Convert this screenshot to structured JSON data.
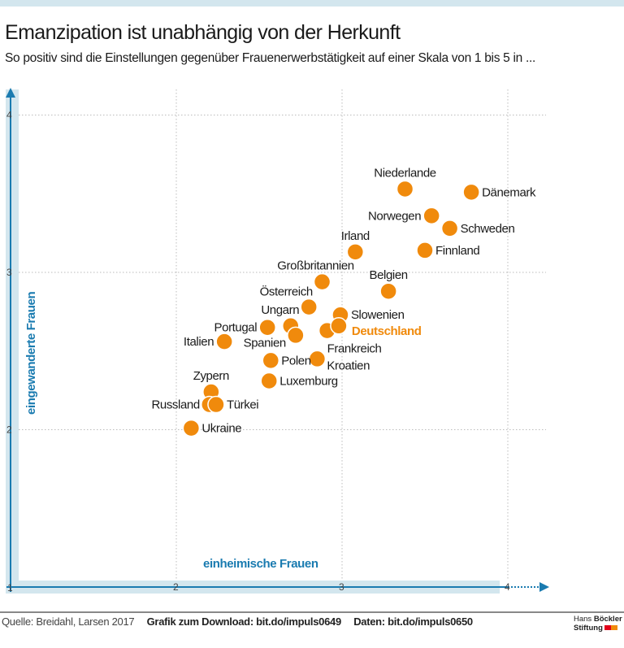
{
  "header": {
    "title": "Emanzipation ist unabhängig von der Herkunft",
    "subtitle": "So positiv sind die Einstellungen gegenüber Frauenerwerbstätigkeit auf einer Skala von 1 bis 5 in ..."
  },
  "chart_data": {
    "type": "scatter",
    "xlabel": "einheimische Frauen",
    "ylabel": "eingewanderte Frauen",
    "xlim": [
      1,
      4.3
    ],
    "ylim": [
      1,
      4.15
    ],
    "x_ticks": [
      "1",
      "2",
      "3",
      "4"
    ],
    "y_ticks": [
      "1",
      "2",
      "3",
      "4"
    ],
    "grid": true,
    "colors": {
      "point": "#f08a0c",
      "axis": "#1a7bb0",
      "axis_band": "#d3e6ee",
      "highlight_label": "#f08a0c"
    },
    "points": [
      {
        "label": "Niederlande",
        "x": 3.38,
        "y": 3.53,
        "label_side": "above"
      },
      {
        "label": "Dänemark",
        "x": 3.78,
        "y": 3.51,
        "label_side": "right"
      },
      {
        "label": "Norwegen",
        "x": 3.54,
        "y": 3.36,
        "label_side": "left"
      },
      {
        "label": "Schweden",
        "x": 3.65,
        "y": 3.28,
        "label_side": "right"
      },
      {
        "label": "Finnland",
        "x": 3.5,
        "y": 3.14,
        "label_side": "right"
      },
      {
        "label": "Irland",
        "x": 3.08,
        "y": 3.13,
        "label_side": "above"
      },
      {
        "label": "Großbritannien",
        "x": 2.88,
        "y": 2.94,
        "label_side": "above-left"
      },
      {
        "label": "Belgien",
        "x": 3.28,
        "y": 2.88,
        "label_side": "above"
      },
      {
        "label": "Österreich",
        "x": 2.8,
        "y": 2.78,
        "label_side": "above-left"
      },
      {
        "label": "Ungarn",
        "x": 2.69,
        "y": 2.66,
        "label_side": "above-left"
      },
      {
        "label": "Portugal",
        "x": 2.55,
        "y": 2.65,
        "label_side": "left"
      },
      {
        "label": "Spanien",
        "x": 2.72,
        "y": 2.6,
        "label_side": "below-left"
      },
      {
        "label": "Italien",
        "x": 2.29,
        "y": 2.56,
        "label_side": "left"
      },
      {
        "label": "Frankreich",
        "x": 2.91,
        "y": 2.63,
        "label_side": "below-right"
      },
      {
        "label": "Slowenien",
        "x": 2.99,
        "y": 2.73,
        "label_side": "right"
      },
      {
        "label": "Deutschland",
        "x": 2.98,
        "y": 2.66,
        "label_side": "right",
        "highlight": true
      },
      {
        "label": "Polen",
        "x": 2.57,
        "y": 2.44,
        "label_side": "right"
      },
      {
        "label": "Kroatien",
        "x": 2.85,
        "y": 2.45,
        "label_side": "below-right"
      },
      {
        "label": "Luxemburg",
        "x": 2.56,
        "y": 2.31,
        "label_side": "right"
      },
      {
        "label": "Zypern",
        "x": 2.21,
        "y": 2.24,
        "label_side": "above"
      },
      {
        "label": "Russland",
        "x": 2.2,
        "y": 2.16,
        "label_side": "left"
      },
      {
        "label": "Türkei",
        "x": 2.24,
        "y": 2.16,
        "label_side": "right"
      },
      {
        "label": "Ukraine",
        "x": 2.09,
        "y": 2.01,
        "label_side": "right"
      }
    ]
  },
  "footer": {
    "source": "Quelle: Breidahl, Larsen 2017",
    "download": "Grafik zum Download: bit.do/impuls0649",
    "data": "Daten: bit.do/impuls0650",
    "logo_line1_a": "Hans",
    "logo_line1_b": "Böckler",
    "logo_line2": "Stiftung",
    "logo_colors": [
      "#e2001a",
      "#f08a0c"
    ]
  }
}
